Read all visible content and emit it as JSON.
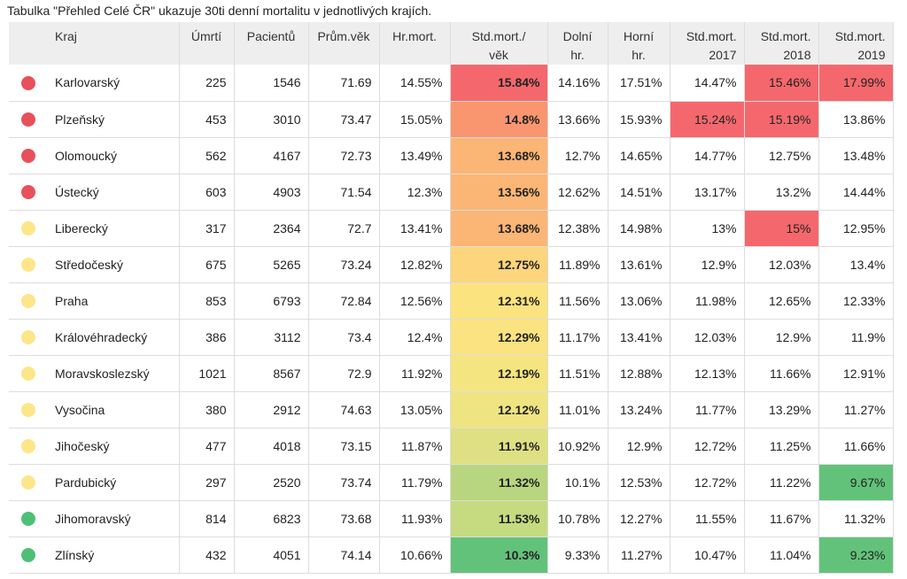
{
  "caption": "Tabulka \"Přehled Celé ČR\" ukazuje 30ti denní mortalitu v jednotlivých krajích.",
  "chart_data": {
    "type": "table",
    "columns": [
      {
        "key": "status",
        "label": [
          "",
          ""
        ]
      },
      {
        "key": "kraj",
        "label": [
          "Kraj",
          ""
        ]
      },
      {
        "key": "umrti",
        "label": [
          "Úmrtí",
          ""
        ]
      },
      {
        "key": "pacientu",
        "label": [
          "Pacientů",
          ""
        ]
      },
      {
        "key": "prum_vek",
        "label": [
          "Prům.věk",
          ""
        ]
      },
      {
        "key": "hr_mort",
        "label": [
          "Hr.mort.",
          ""
        ]
      },
      {
        "key": "std_mort_vek",
        "label": [
          "Std.mort./",
          "věk"
        ]
      },
      {
        "key": "dolni",
        "label": [
          "Dolní",
          "hr."
        ]
      },
      {
        "key": "horni",
        "label": [
          "Horní",
          "hr."
        ]
      },
      {
        "key": "std_2017",
        "label": [
          "Std.mort.",
          "2017"
        ]
      },
      {
        "key": "std_2018",
        "label": [
          "Std.mort.",
          "2018"
        ]
      },
      {
        "key": "std_2019",
        "label": [
          "Std.mort.",
          "2019"
        ]
      }
    ],
    "colors": {
      "red_dot": "#e8505b",
      "yellow_dot": "#fde68a",
      "green_dot": "#4fbf77",
      "highlight_red": "#f4686d",
      "highlight_green": "#63c27a",
      "header_bg": "#eeeeee"
    },
    "rows": [
      {
        "status": "red",
        "kraj": "Karlovarský",
        "umrti": "225",
        "pacientu": "1546",
        "prum_vek": "71.69",
        "hr_mort": "14.55%",
        "std_mort_vek": "15.84%",
        "std_bg": "#f4686d",
        "dolni": "14.16%",
        "horni": "17.51%",
        "std_2017": "14.47%",
        "std_2018": "15.46%",
        "std_2019": "17.99%",
        "hl_2017": "",
        "hl_2018": "red",
        "hl_2019": "red"
      },
      {
        "status": "red",
        "kraj": "Plzeňský",
        "umrti": "453",
        "pacientu": "3010",
        "prum_vek": "73.47",
        "hr_mort": "15.05%",
        "std_mort_vek": "14.8%",
        "std_bg": "#f99670",
        "dolni": "13.66%",
        "horni": "15.93%",
        "std_2017": "15.24%",
        "std_2018": "15.19%",
        "std_2019": "13.86%",
        "hl_2017": "red",
        "hl_2018": "red",
        "hl_2019": ""
      },
      {
        "status": "red",
        "kraj": "Olomoucký",
        "umrti": "562",
        "pacientu": "4167",
        "prum_vek": "72.73",
        "hr_mort": "13.49%",
        "std_mort_vek": "13.68%",
        "std_bg": "#fbb575",
        "dolni": "12.7%",
        "horni": "14.65%",
        "std_2017": "14.77%",
        "std_2018": "12.75%",
        "std_2019": "13.48%",
        "hl_2017": "",
        "hl_2018": "",
        "hl_2019": ""
      },
      {
        "status": "red",
        "kraj": "Ústecký",
        "umrti": "603",
        "pacientu": "4903",
        "prum_vek": "71.54",
        "hr_mort": "12.3%",
        "std_mort_vek": "13.56%",
        "std_bg": "#fbb676",
        "dolni": "12.62%",
        "horni": "14.51%",
        "std_2017": "13.17%",
        "std_2018": "13.2%",
        "std_2019": "14.44%",
        "hl_2017": "",
        "hl_2018": "",
        "hl_2019": ""
      },
      {
        "status": "yellow",
        "kraj": "Liberecký",
        "umrti": "317",
        "pacientu": "2364",
        "prum_vek": "72.7",
        "hr_mort": "13.41%",
        "std_mort_vek": "13.68%",
        "std_bg": "#fbb575",
        "dolni": "12.38%",
        "horni": "14.98%",
        "std_2017": "13%",
        "std_2018": "15%",
        "std_2019": "12.95%",
        "hl_2017": "",
        "hl_2018": "red",
        "hl_2019": ""
      },
      {
        "status": "yellow",
        "kraj": "Středočeský",
        "umrti": "675",
        "pacientu": "5265",
        "prum_vek": "73.24",
        "hr_mort": "12.82%",
        "std_mort_vek": "12.75%",
        "std_bg": "#fcd57d",
        "dolni": "11.89%",
        "horni": "13.61%",
        "std_2017": "12.9%",
        "std_2018": "12.03%",
        "std_2019": "13.4%",
        "hl_2017": "",
        "hl_2018": "",
        "hl_2019": ""
      },
      {
        "status": "yellow",
        "kraj": "Praha",
        "umrti": "853",
        "pacientu": "6793",
        "prum_vek": "72.84",
        "hr_mort": "12.56%",
        "std_mort_vek": "12.31%",
        "std_bg": "#fbe37f",
        "dolni": "11.56%",
        "horni": "13.06%",
        "std_2017": "11.98%",
        "std_2018": "12.65%",
        "std_2019": "12.33%",
        "hl_2017": "",
        "hl_2018": "",
        "hl_2019": ""
      },
      {
        "status": "yellow",
        "kraj": "Královéhradecký",
        "umrti": "386",
        "pacientu": "3112",
        "prum_vek": "73.4",
        "hr_mort": "12.4%",
        "std_mort_vek": "12.29%",
        "std_bg": "#fae380",
        "dolni": "11.17%",
        "horni": "13.41%",
        "std_2017": "12.03%",
        "std_2018": "12.9%",
        "std_2019": "11.9%",
        "hl_2017": "",
        "hl_2018": "",
        "hl_2019": ""
      },
      {
        "status": "yellow",
        "kraj": "Moravskoslezský",
        "umrti": "1021",
        "pacientu": "8567",
        "prum_vek": "72.9",
        "hr_mort": "11.92%",
        "std_mort_vek": "12.19%",
        "std_bg": "#f5e581",
        "dolni": "11.51%",
        "horni": "12.88%",
        "std_2017": "12.13%",
        "std_2018": "11.66%",
        "std_2019": "12.91%",
        "hl_2017": "",
        "hl_2018": "",
        "hl_2019": ""
      },
      {
        "status": "yellow",
        "kraj": "Vysočina",
        "umrti": "380",
        "pacientu": "2912",
        "prum_vek": "74.63",
        "hr_mort": "13.05%",
        "std_mort_vek": "12.12%",
        "std_bg": "#efe482",
        "dolni": "11.01%",
        "horni": "13.24%",
        "std_2017": "11.77%",
        "std_2018": "13.29%",
        "std_2019": "11.27%",
        "hl_2017": "",
        "hl_2018": "",
        "hl_2019": ""
      },
      {
        "status": "yellow",
        "kraj": "Jihočeský",
        "umrti": "477",
        "pacientu": "4018",
        "prum_vek": "73.15",
        "hr_mort": "11.87%",
        "std_mort_vek": "11.91%",
        "std_bg": "#dfe083",
        "dolni": "10.92%",
        "horni": "12.9%",
        "std_2017": "12.72%",
        "std_2018": "11.25%",
        "std_2019": "11.66%",
        "hl_2017": "",
        "hl_2018": "",
        "hl_2019": ""
      },
      {
        "status": "yellow",
        "kraj": "Pardubický",
        "umrti": "297",
        "pacientu": "2520",
        "prum_vek": "73.74",
        "hr_mort": "11.79%",
        "std_mort_vek": "11.32%",
        "std_bg": "#b8d67f",
        "dolni": "10.1%",
        "horni": "12.53%",
        "std_2017": "12.72%",
        "std_2018": "11.22%",
        "std_2019": "9.67%",
        "hl_2017": "",
        "hl_2018": "",
        "hl_2019": "green"
      },
      {
        "status": "green",
        "kraj": "Jihomoravský",
        "umrti": "814",
        "pacientu": "6823",
        "prum_vek": "73.68",
        "hr_mort": "11.93%",
        "std_mort_vek": "11.53%",
        "std_bg": "#c6da80",
        "dolni": "10.78%",
        "horni": "12.27%",
        "std_2017": "11.55%",
        "std_2018": "11.67%",
        "std_2019": "11.32%",
        "hl_2017": "",
        "hl_2018": "",
        "hl_2019": ""
      },
      {
        "status": "green",
        "kraj": "Zlínský",
        "umrti": "432",
        "pacientu": "4051",
        "prum_vek": "74.14",
        "hr_mort": "10.66%",
        "std_mort_vek": "10.3%",
        "std_bg": "#63c27a",
        "dolni": "9.33%",
        "horni": "11.27%",
        "std_2017": "10.47%",
        "std_2018": "11.04%",
        "std_2019": "9.23%",
        "hl_2017": "",
        "hl_2018": "",
        "hl_2019": "green"
      }
    ]
  }
}
